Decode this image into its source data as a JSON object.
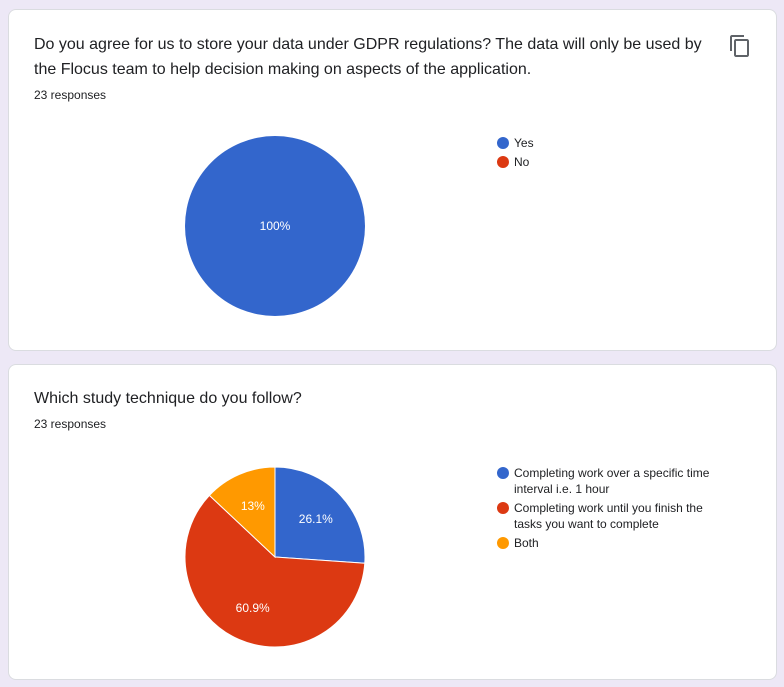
{
  "cards": [
    {
      "question": "Do you agree for us to store your data under GDPR regulations? The data will only be used by the Flocus team to help decision making on aspects of the application.",
      "responses": "23 responses",
      "copy_icon": "copy-icon"
    },
    {
      "question": "Which study technique do you follow?",
      "responses": "23 responses"
    }
  ],
  "chart_data": [
    {
      "type": "pie",
      "categories": [
        "Yes",
        "No"
      ],
      "values": [
        100,
        0
      ],
      "labels": [
        "100%",
        ""
      ],
      "colors": [
        "#3366cc",
        "#dc3912"
      ],
      "legend": "right"
    },
    {
      "type": "pie",
      "categories": [
        "Completing work over a specific time interval i.e. 1 hour",
        "Completing work until you finish the tasks you want to complete",
        "Both"
      ],
      "values": [
        26.1,
        60.9,
        13
      ],
      "labels": [
        "26.1%",
        "60.9%",
        "13%"
      ],
      "colors": [
        "#3366cc",
        "#dc3912",
        "#ff9900"
      ],
      "legend": "right"
    }
  ]
}
